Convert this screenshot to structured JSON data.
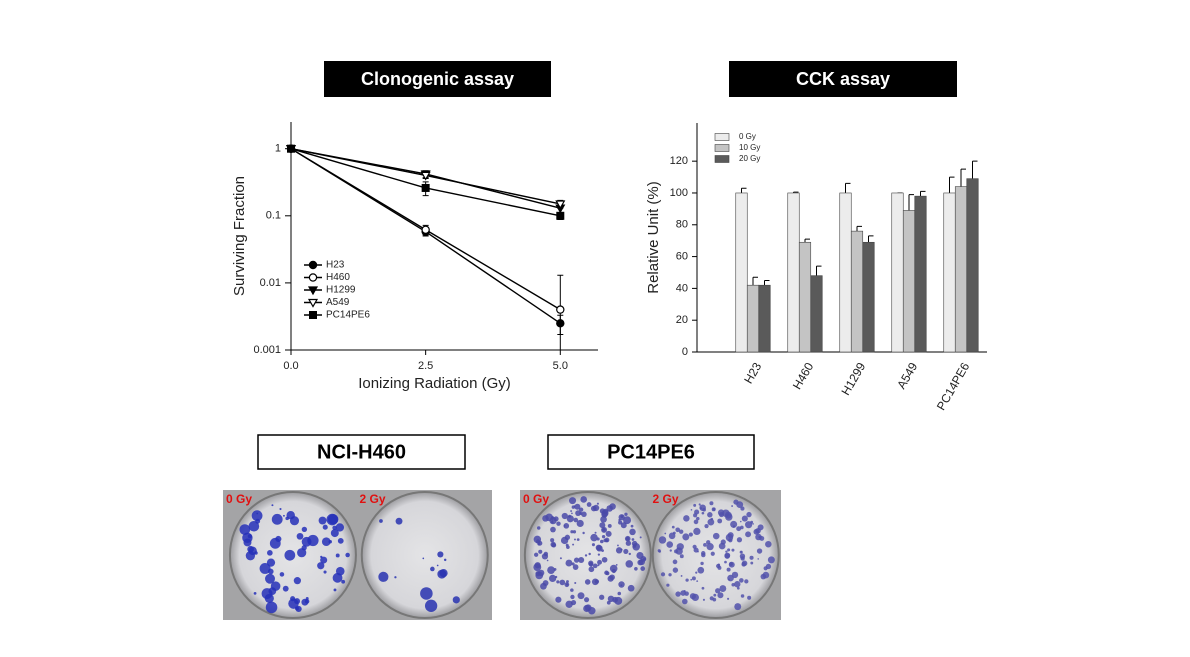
{
  "chart_data": [
    {
      "type": "line",
      "title": "Clonogenic assay",
      "x_label": "Ionizing Radiation (Gy)",
      "y_label": "Surviving Fraction",
      "x": [
        0,
        2.5,
        5
      ],
      "xlim": [
        0,
        5.7
      ],
      "xticks": [
        {
          "value": 0,
          "label": "0.0"
        },
        2.5,
        {
          "value": 5,
          "label": "5.0"
        }
      ],
      "ylim": [
        0.001,
        2.5
      ],
      "yticks": [
        0.001,
        0.01,
        0.1,
        1
      ],
      "log_y": true,
      "legend": "lower left",
      "series": [
        {
          "name": "H23",
          "color": "#000000",
          "marker": "circle",
          "filled": true,
          "values": [
            1,
            0.058,
            0.0025
          ],
          "errors": [
            0.05,
            0.008,
            0.0008
          ]
        },
        {
          "name": "H460",
          "color": "#000000",
          "marker": "circle",
          "filled": false,
          "values": [
            1,
            0.062,
            0.004
          ],
          "errors": [
            0.05,
            0.01,
            0.009
          ]
        },
        {
          "name": "H1299",
          "color": "#000000",
          "marker": "triangle-down",
          "filled": true,
          "values": [
            1,
            0.42,
            0.13
          ],
          "errors": [
            0.05,
            0.05,
            0.03
          ]
        },
        {
          "name": "A549",
          "color": "#000000",
          "marker": "triangle-down",
          "filled": false,
          "values": [
            1,
            0.4,
            0.15
          ],
          "errors": [
            0.05,
            0.04,
            0.02
          ]
        },
        {
          "name": "PC14PE6",
          "color": "#000000",
          "marker": "square",
          "filled": true,
          "values": [
            1,
            0.26,
            0.1
          ],
          "errors": [
            0.05,
            0.06,
            0.012
          ]
        }
      ]
    },
    {
      "type": "bar",
      "title": "CCK assay",
      "y_label": "Relative Unit (%)",
      "categories": [
        "H23",
        "H460",
        "H1299",
        "A549",
        "PC14PE6"
      ],
      "ylim": [
        0,
        144
      ],
      "yticks": [
        0,
        20,
        40,
        60,
        80,
        100,
        120
      ],
      "legend": "upper left",
      "series": [
        {
          "name": "0 Gy",
          "color": "#ececec",
          "values": [
            100,
            100,
            100,
            100,
            100
          ],
          "errors": [
            3,
            0.5,
            6,
            0,
            10
          ]
        },
        {
          "name": "10 Gy",
          "color": "#c4c4c4",
          "values": [
            42,
            69,
            76,
            89,
            104
          ],
          "errors": [
            5,
            2,
            3,
            10,
            11
          ]
        },
        {
          "name": "20 Gy",
          "color": "#5a5a5a",
          "values": [
            42,
            48,
            69,
            98,
            109
          ],
          "errors": [
            3,
            6,
            4,
            3,
            11
          ]
        }
      ]
    }
  ],
  "photos": [
    {
      "title": "NCI-H460",
      "doses": [
        "0 Gy",
        "2 Gy"
      ]
    },
    {
      "title": "PC14PE6",
      "doses": [
        "0 Gy",
        "2 Gy"
      ]
    }
  ]
}
